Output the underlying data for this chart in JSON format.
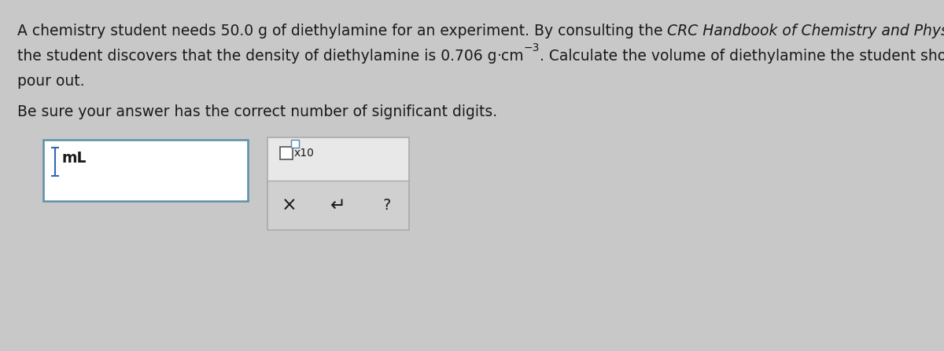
{
  "bg_color": "#c8c8c8",
  "content_bg": "#d8d8d8",
  "text_color": "#1a1a1a",
  "line1a": "A chemistry student needs 50.0 g of diethylamine for an experiment. By consulting the ",
  "line1b_italic": "CRC Handbook of Chemistry and Physics,",
  "line2a": "the student discovers that the density of diethylamine is 0.706 g",
  "line2b": "·",
  "line2c": "cm",
  "line2d_sup": "−3",
  "line2e": ". Calculate the volume of diethylamine the student should",
  "line3": "pour out.",
  "line4": "Be sure your answer has the correct number of significant digits.",
  "ml_label": "mL",
  "x10_label": "x10",
  "button_x": "×",
  "button_undo": "↵",
  "button_q": "?",
  "white": "#ffffff",
  "input_border": "#5b8fa8",
  "panel_border": "#aaaaaa",
  "panel_top_bg": "#e8e8e8",
  "panel_bot_bg": "#d0d0d0",
  "cursor_color": "#3366bb",
  "checkbox_border": "#555555",
  "sup_box_color": "#5588aa"
}
